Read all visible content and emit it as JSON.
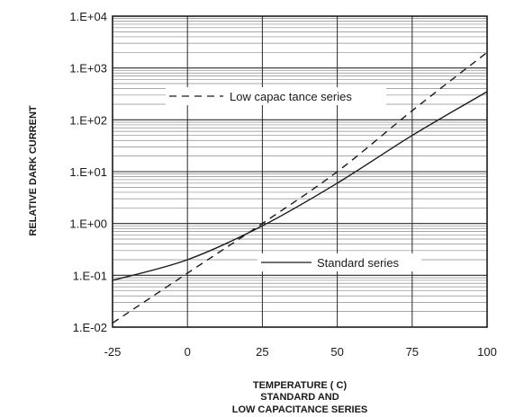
{
  "chart_data": {
    "type": "line",
    "x_axis": {
      "label": "TEMPERATURE ( C)",
      "min": -25,
      "max": 100,
      "ticks": [
        "-25",
        "0",
        "25",
        "50",
        "75",
        "100"
      ],
      "tick_values": [
        -25,
        0,
        25,
        50,
        75,
        100
      ]
    },
    "y_axis": {
      "label": "RELATIVE DARK CURRENT",
      "scale": "log",
      "min": 0.01,
      "max": 10000,
      "ticks": [
        "1.E-02",
        "1.E-01",
        "1.E+00",
        "1.E+01",
        "1.E+02",
        "1.E+03",
        "1.E+04"
      ],
      "tick_values": [
        0.01,
        0.1,
        1,
        10,
        100,
        1000,
        10000
      ]
    },
    "title_lines": [
      "STANDARD AND",
      "LOW CAPACITANCE SERIES"
    ],
    "grid": true,
    "series": [
      {
        "name": "Low capac tance series",
        "style": "dashed",
        "color": "#1a1a1a",
        "x": [
          -25,
          0,
          25,
          50,
          75,
          100
        ],
        "y": [
          0.012,
          0.11,
          1.0,
          10.0,
          150,
          2000
        ]
      },
      {
        "name": "Standard series",
        "style": "solid",
        "color": "#1a1a1a",
        "x": [
          -25,
          0,
          25,
          50,
          75,
          100
        ],
        "y": [
          0.08,
          0.2,
          0.9,
          6.0,
          50,
          350
        ]
      }
    ],
    "legend": [
      {
        "label": "Low capac tance series",
        "style": "dashed"
      },
      {
        "label": "Standard series",
        "style": "solid"
      }
    ]
  }
}
